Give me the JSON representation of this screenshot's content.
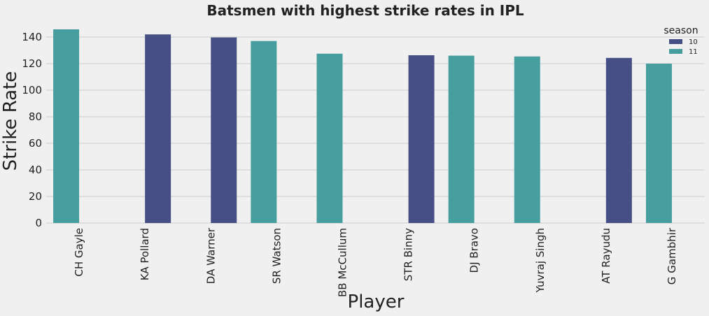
{
  "chart_data": {
    "type": "bar",
    "title": "Batsmen with highest strike rates in IPL",
    "xlabel": "Player",
    "ylabel": "Strike Rate",
    "categories": [
      "CH Gayle",
      "KA Pollard",
      "DA Warner",
      "SR Watson",
      "BB McCullum",
      "STR Binny",
      "DJ Bravo",
      "Yuvraj Singh",
      "AT Rayudu",
      "G Gambhir"
    ],
    "series": [
      {
        "name": "10",
        "color": "#464f85",
        "values": [
          null,
          142.0,
          139.7,
          null,
          null,
          126.3,
          null,
          null,
          124.3,
          null
        ]
      },
      {
        "name": "11",
        "color": "#479e9e",
        "values": [
          145.8,
          null,
          null,
          137.0,
          127.5,
          null,
          126.0,
          125.4,
          null,
          120.0
        ]
      }
    ],
    "ylim": [
      0,
      150
    ],
    "yticks": [
      0,
      20,
      40,
      60,
      80,
      100,
      120,
      140
    ],
    "grid": true,
    "legend": {
      "title": "season",
      "placement": "top-right"
    }
  }
}
